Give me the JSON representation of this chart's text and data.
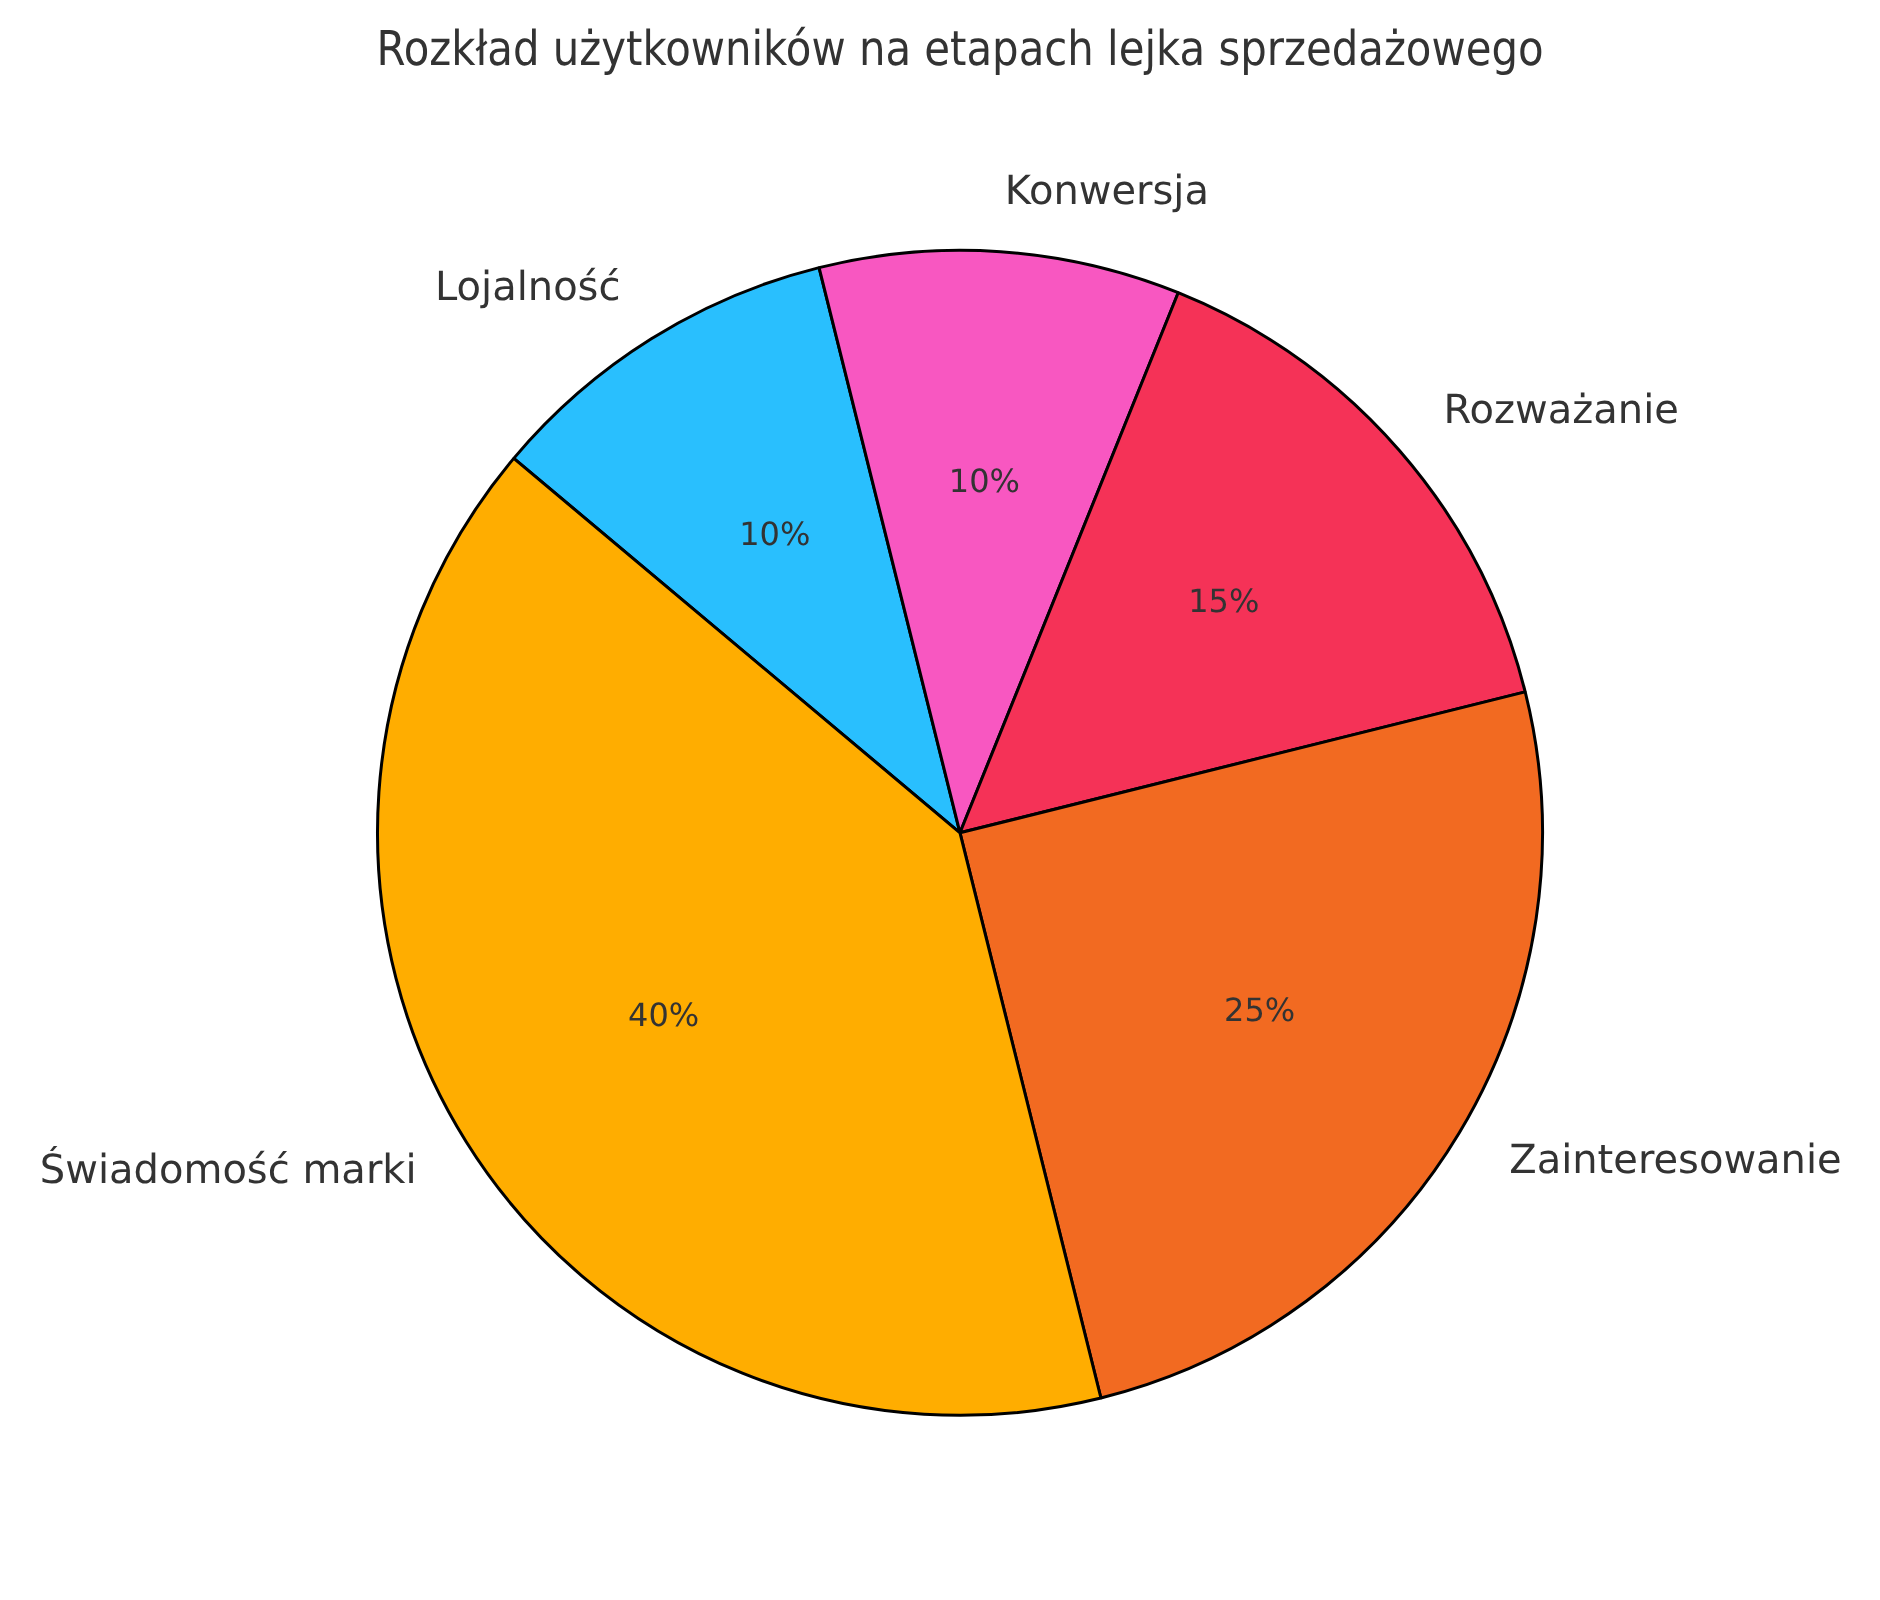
{
  "chart_data": {
    "type": "pie",
    "title": "Rozkład użytkowników na etapach lejka sprzedażowego",
    "categories": [
      "Świadomość marki",
      "Zainteresowanie",
      "Rozważanie",
      "Konwersja",
      "Lojalność"
    ],
    "values": [
      40,
      25,
      15,
      10,
      10
    ],
    "value_labels": [
      "40%",
      "25%",
      "15%",
      "10%",
      "10%"
    ],
    "colors": [
      "#ffad00",
      "#f26a21",
      "#f53257",
      "#f857c1",
      "#29bffe"
    ],
    "legend": false
  }
}
